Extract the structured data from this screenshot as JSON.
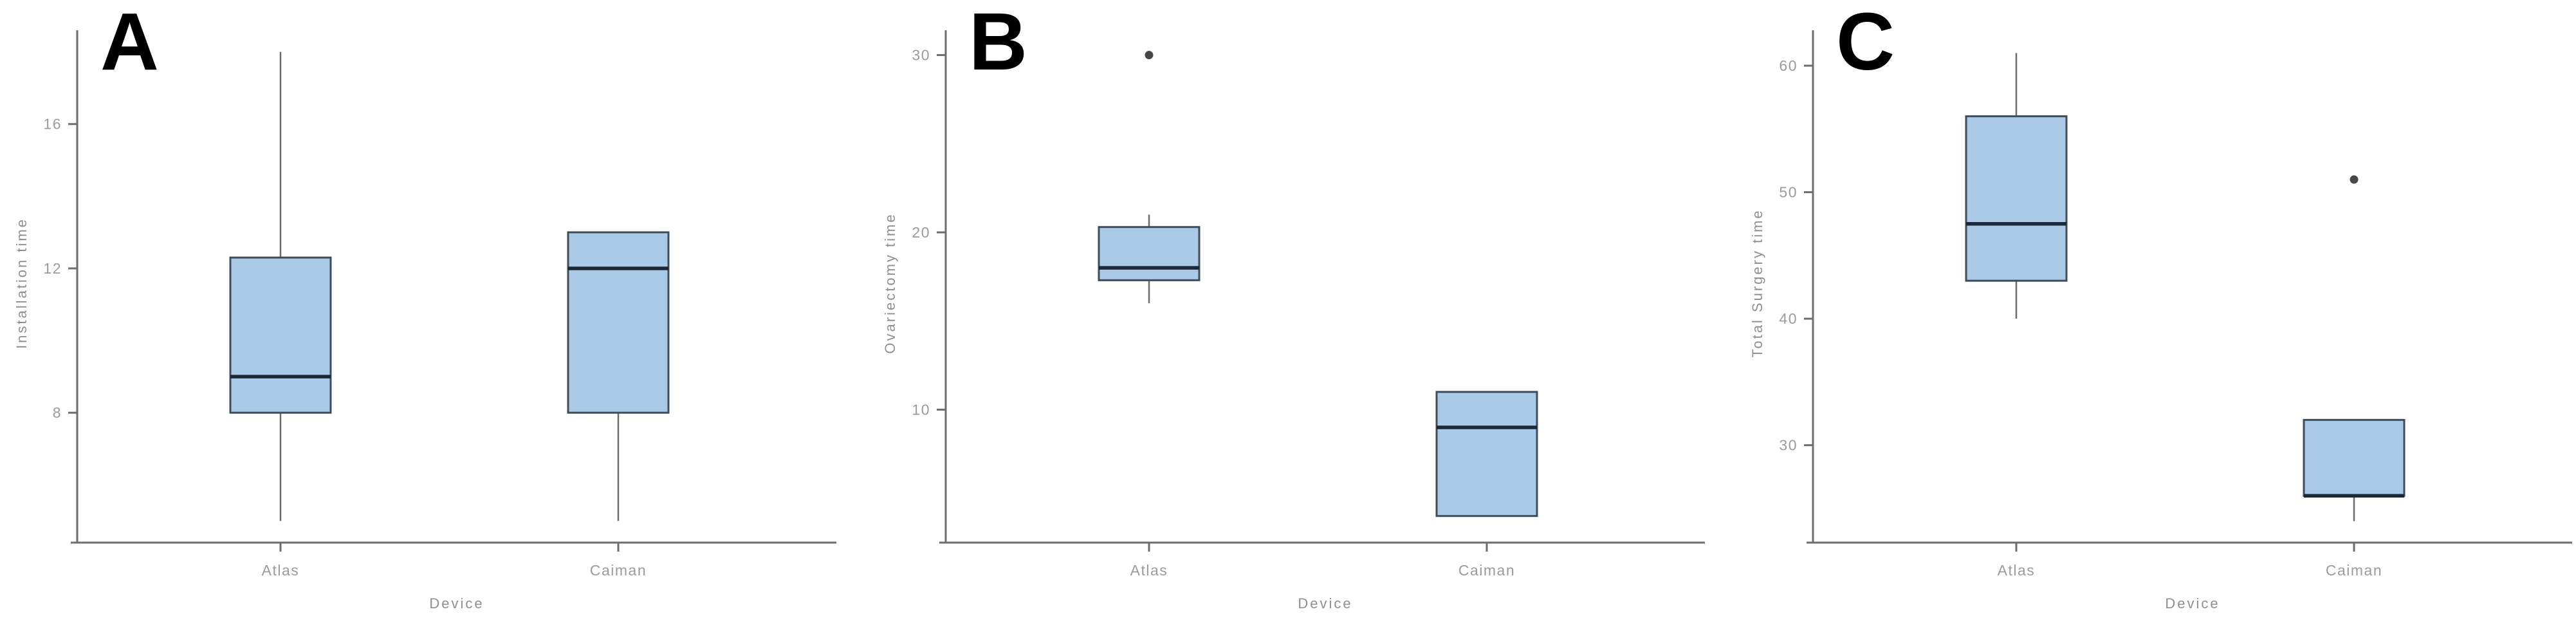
{
  "figure": {
    "background": "#ffffff",
    "colors": {
      "box_fill": "#aac9e6",
      "box_border": "#3e4d5c",
      "median": "#1b2836",
      "whisker": "#6b6b6b",
      "axis": "#6e6e6e",
      "tick_label": "#9b9b9b",
      "axis_label": "#8f8f8f",
      "outlier": "#474747",
      "panel_letter": "#000000"
    }
  },
  "chart_data": [
    {
      "type": "boxplot",
      "panel_label": "A",
      "title": "",
      "xlabel": "Device",
      "ylabel": "Installation time",
      "categories": [
        "Atlas",
        "Caiman"
      ],
      "yticks": [
        8,
        12,
        16
      ],
      "ylim": [
        4.4,
        18.6
      ],
      "grid": false,
      "legend": "none",
      "boxes": [
        {
          "category": "Atlas",
          "whisker_low": 5,
          "q1": 8,
          "median": 9,
          "q3": 12.3,
          "whisker_high": 18,
          "outliers": []
        },
        {
          "category": "Caiman",
          "whisker_low": 5,
          "q1": 8,
          "median": 12,
          "q3": 13,
          "whisker_high": 13,
          "outliers": []
        }
      ]
    },
    {
      "type": "boxplot",
      "panel_label": "B",
      "title": "",
      "xlabel": "Device",
      "ylabel": "Ovariectomy time",
      "categories": [
        "Atlas",
        "Caiman"
      ],
      "yticks": [
        10,
        20,
        30
      ],
      "ylim": [
        2.5,
        31.4
      ],
      "grid": false,
      "legend": "none",
      "boxes": [
        {
          "category": "Atlas",
          "whisker_low": 16,
          "q1": 17.3,
          "median": 18,
          "q3": 20.3,
          "whisker_high": 21,
          "outliers": [
            30
          ]
        },
        {
          "category": "Caiman",
          "whisker_low": 4,
          "q1": 4,
          "median": 9,
          "q3": 11,
          "whisker_high": 11,
          "outliers": []
        }
      ]
    },
    {
      "type": "boxplot",
      "panel_label": "C",
      "title": "",
      "xlabel": "Device",
      "ylabel": "Total Surgery time",
      "categories": [
        "Atlas",
        "Caiman"
      ],
      "yticks": [
        30,
        40,
        50,
        60
      ],
      "ylim": [
        22.3,
        62.8
      ],
      "grid": false,
      "legend": "none",
      "boxes": [
        {
          "category": "Atlas",
          "whisker_low": 40,
          "q1": 43,
          "median": 47.5,
          "q3": 56,
          "whisker_high": 61,
          "outliers": []
        },
        {
          "category": "Caiman",
          "whisker_low": 24,
          "q1": 26,
          "median": 26,
          "q3": 32,
          "whisker_high": 32,
          "outliers": [
            51
          ]
        }
      ]
    }
  ]
}
